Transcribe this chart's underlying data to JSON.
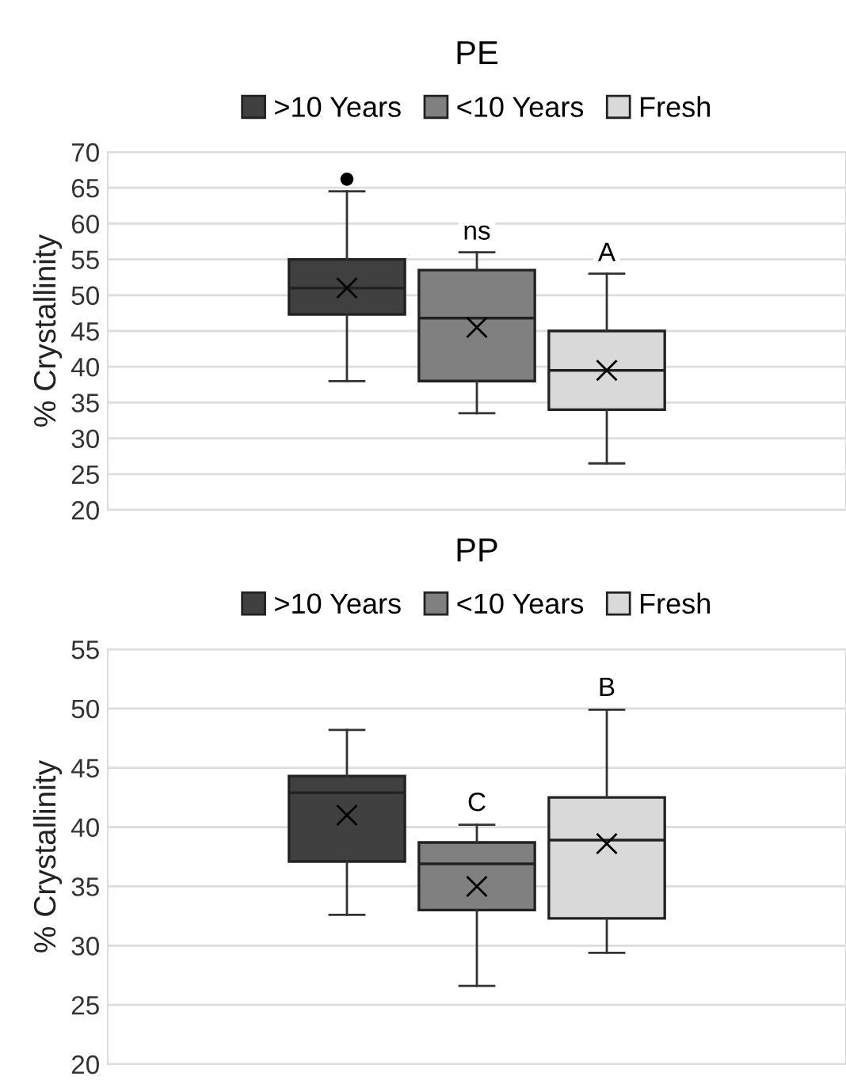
{
  "chart_data": [
    {
      "type": "box",
      "title": "PE",
      "ylabel": "% Crystallinity",
      "categories": [
        null
      ],
      "ylim": [
        20,
        70
      ],
      "yticks": [
        20,
        25,
        30,
        35,
        40,
        45,
        50,
        55,
        60,
        65,
        70
      ],
      "grid": "y",
      "legend": "top",
      "marker": "cross",
      "annotations": [
        "ns",
        "A"
      ],
      "series": [
        {
          "name": ">10 Years",
          "color": "#404040",
          "boxes": [
            {
              "low": 38,
              "q1": 47.3,
              "median": 51,
              "q3": 55,
              "high": 64.5,
              "mean": 51,
              "outliers": [
                66.2
              ]
            }
          ]
        },
        {
          "name": "<10 Years",
          "color": "#808080",
          "boxes": [
            {
              "low": 33.5,
              "q1": 38,
              "median": 46.8,
              "q3": 53.5,
              "high": 56,
              "mean": 45.5
            }
          ]
        },
        {
          "name": "Fresh",
          "color": "#d9d9d9",
          "boxes": [
            {
              "low": 26.5,
              "q1": 34,
              "median": 39.5,
              "q3": 45,
              "high": 53,
              "mean": 39.5
            }
          ]
        }
      ]
    },
    {
      "type": "box",
      "title": "PP",
      "ylabel": "% Crystallinity",
      "categories": [
        null
      ],
      "ylim": [
        20,
        55
      ],
      "yticks": [
        20,
        25,
        30,
        35,
        40,
        45,
        50,
        55
      ],
      "grid": "y",
      "legend": "top",
      "marker": "cross",
      "annotations": [
        "C",
        "B"
      ],
      "series": [
        {
          "name": ">10 Years",
          "color": "#404040",
          "boxes": [
            {
              "low": 32.6,
              "q1": 37.1,
              "median": 42.9,
              "q3": 44.3,
              "high": 48.2,
              "mean": 41
            }
          ]
        },
        {
          "name": "<10 Years",
          "color": "#808080",
          "boxes": [
            {
              "low": 26.6,
              "q1": 33,
              "median": 36.9,
              "q3": 38.7,
              "high": 40.2,
              "mean": 35
            }
          ]
        },
        {
          "name": "Fresh",
          "color": "#d9d9d9",
          "boxes": [
            {
              "low": 29.4,
              "q1": 32.3,
              "median": 38.9,
              "q3": 42.5,
              "high": 49.9,
              "mean": 38.6
            }
          ]
        }
      ]
    }
  ]
}
